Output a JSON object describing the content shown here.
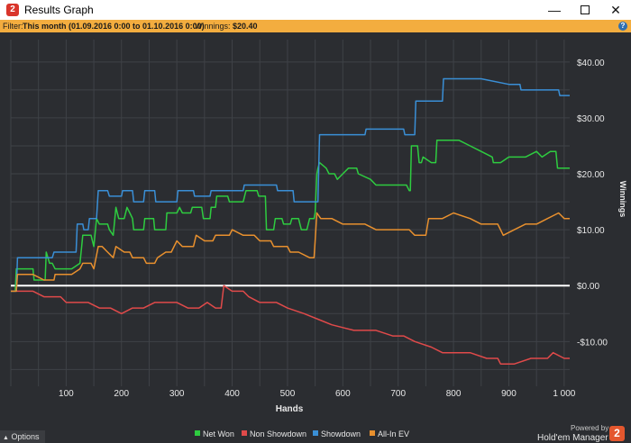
{
  "window": {
    "title": "Results Graph",
    "app_icon_glyph": "2",
    "controls": {
      "minimize": "—",
      "close": "✕"
    }
  },
  "filter_bar": {
    "label": "Filter:",
    "value": "This month (01.09.2016 0:00 to 01.10.2016 0:00)",
    "winnings_label": "Winnings:",
    "winnings_value": "$20.40",
    "help_glyph": "?"
  },
  "footer": {
    "options_label": "Options",
    "options_icon": "triangle-up",
    "powered_by": "Powered by",
    "brand": "Hold'em Manager",
    "brand_logo_glyph": "2"
  },
  "colors": {
    "background": "#2b2d31",
    "grid": "#3f4247",
    "axis_text": "#e8e8e8",
    "filter_bar": "#f3ad3f",
    "net_won": "#2ecc40",
    "non_showdown": "#e04a4a",
    "showdown": "#3a8fd6",
    "all_in_ev": "#e8902e",
    "zero_line": "#ffffff"
  },
  "chart_data": {
    "type": "line",
    "xlabel": "Hands",
    "ylabel": "Winnings",
    "xlim": [
      0,
      1010
    ],
    "ylim": [
      -18,
      44
    ],
    "x_ticks": [
      100,
      200,
      300,
      400,
      500,
      600,
      700,
      800,
      900,
      1000
    ],
    "x_tick_labels": [
      "100",
      "200",
      "300",
      "400",
      "500",
      "600",
      "700",
      "800",
      "900",
      "1 000"
    ],
    "y_ticks": [
      40,
      30,
      20,
      10,
      0,
      -10
    ],
    "y_tick_labels": [
      "$40.00",
      "$30.00",
      "$20.00",
      "$10.00",
      "$0.00",
      "-$10.00"
    ],
    "grid": true,
    "legend_position": "bottom-center",
    "series": [
      {
        "name": "Net Won",
        "color": "#2ecc40",
        "points": [
          [
            0,
            -1
          ],
          [
            8,
            -1
          ],
          [
            10,
            3
          ],
          [
            40,
            3
          ],
          [
            42,
            1
          ],
          [
            62,
            1
          ],
          [
            64,
            6
          ],
          [
            70,
            4
          ],
          [
            75,
            4
          ],
          [
            80,
            3
          ],
          [
            110,
            3
          ],
          [
            125,
            4
          ],
          [
            128,
            7
          ],
          [
            130,
            9
          ],
          [
            145,
            9
          ],
          [
            150,
            7
          ],
          [
            155,
            12
          ],
          [
            160,
            11
          ],
          [
            175,
            11
          ],
          [
            178,
            10
          ],
          [
            185,
            9
          ],
          [
            190,
            14
          ],
          [
            195,
            12
          ],
          [
            205,
            12
          ],
          [
            210,
            14
          ],
          [
            215,
            13
          ],
          [
            220,
            12
          ],
          [
            222,
            10
          ],
          [
            240,
            10
          ],
          [
            242,
            12
          ],
          [
            258,
            12
          ],
          [
            260,
            10
          ],
          [
            280,
            10
          ],
          [
            282,
            13
          ],
          [
            300,
            13
          ],
          [
            305,
            14
          ],
          [
            310,
            13
          ],
          [
            325,
            13
          ],
          [
            328,
            14
          ],
          [
            345,
            14
          ],
          [
            348,
            12
          ],
          [
            360,
            12
          ],
          [
            362,
            14
          ],
          [
            370,
            14
          ],
          [
            372,
            16
          ],
          [
            392,
            16
          ],
          [
            395,
            15
          ],
          [
            420,
            15
          ],
          [
            425,
            17
          ],
          [
            445,
            17
          ],
          [
            448,
            16
          ],
          [
            460,
            16
          ],
          [
            462,
            10
          ],
          [
            475,
            10
          ],
          [
            478,
            12
          ],
          [
            490,
            12
          ],
          [
            493,
            11
          ],
          [
            505,
            11
          ],
          [
            508,
            12
          ],
          [
            520,
            12
          ],
          [
            525,
            10
          ],
          [
            535,
            10
          ],
          [
            540,
            12
          ],
          [
            548,
            12
          ],
          [
            550,
            13
          ],
          [
            553,
            20
          ],
          [
            555,
            21
          ],
          [
            558,
            22
          ],
          [
            570,
            21
          ],
          [
            575,
            20
          ],
          [
            585,
            20
          ],
          [
            590,
            19
          ],
          [
            600,
            20
          ],
          [
            610,
            21
          ],
          [
            625,
            21
          ],
          [
            628,
            20
          ],
          [
            650,
            19
          ],
          [
            660,
            18
          ],
          [
            680,
            18
          ],
          [
            700,
            18
          ],
          [
            715,
            18
          ],
          [
            720,
            17
          ],
          [
            722,
            17
          ],
          [
            724,
            25
          ],
          [
            735,
            25
          ],
          [
            738,
            22
          ],
          [
            742,
            22
          ],
          [
            745,
            23
          ],
          [
            760,
            22
          ],
          [
            768,
            22
          ],
          [
            770,
            26
          ],
          [
            790,
            26
          ],
          [
            810,
            26
          ],
          [
            830,
            25
          ],
          [
            850,
            24
          ],
          [
            870,
            23
          ],
          [
            872,
            22
          ],
          [
            885,
            22
          ],
          [
            900,
            23
          ],
          [
            915,
            23
          ],
          [
            930,
            23
          ],
          [
            950,
            24
          ],
          [
            960,
            23
          ],
          [
            975,
            24
          ],
          [
            985,
            24
          ],
          [
            988,
            21
          ],
          [
            1000,
            21
          ],
          [
            1010,
            21
          ]
        ]
      },
      {
        "name": "Non Showdown",
        "color": "#e04a4a",
        "points": [
          [
            0,
            -1
          ],
          [
            10,
            -1
          ],
          [
            20,
            -1
          ],
          [
            40,
            -1
          ],
          [
            60,
            -2
          ],
          [
            90,
            -2
          ],
          [
            100,
            -3
          ],
          [
            140,
            -3
          ],
          [
            160,
            -4
          ],
          [
            180,
            -4
          ],
          [
            200,
            -5
          ],
          [
            220,
            -4
          ],
          [
            240,
            -4
          ],
          [
            260,
            -3
          ],
          [
            300,
            -3
          ],
          [
            320,
            -4
          ],
          [
            340,
            -4
          ],
          [
            355,
            -3
          ],
          [
            370,
            -4
          ],
          [
            380,
            -4
          ],
          [
            385,
            0
          ],
          [
            400,
            -1
          ],
          [
            420,
            -1
          ],
          [
            430,
            -2
          ],
          [
            450,
            -3
          ],
          [
            470,
            -3
          ],
          [
            480,
            -3
          ],
          [
            500,
            -4
          ],
          [
            530,
            -5
          ],
          [
            555,
            -6
          ],
          [
            580,
            -7
          ],
          [
            620,
            -8
          ],
          [
            660,
            -8
          ],
          [
            690,
            -9
          ],
          [
            710,
            -9
          ],
          [
            730,
            -10
          ],
          [
            760,
            -11
          ],
          [
            780,
            -12
          ],
          [
            800,
            -12
          ],
          [
            830,
            -12
          ],
          [
            860,
            -13
          ],
          [
            880,
            -13
          ],
          [
            885,
            -14
          ],
          [
            910,
            -14
          ],
          [
            940,
            -13
          ],
          [
            970,
            -13
          ],
          [
            980,
            -12
          ],
          [
            1000,
            -13
          ],
          [
            1010,
            -13
          ]
        ]
      },
      {
        "name": "Showdown",
        "color": "#3a8fd6",
        "points": [
          [
            0,
            -1
          ],
          [
            10,
            -1
          ],
          [
            12,
            5
          ],
          [
            75,
            5
          ],
          [
            78,
            6
          ],
          [
            118,
            6
          ],
          [
            120,
            11
          ],
          [
            130,
            11
          ],
          [
            132,
            10
          ],
          [
            140,
            10
          ],
          [
            142,
            12
          ],
          [
            155,
            12
          ],
          [
            158,
            17
          ],
          [
            160,
            17
          ],
          [
            175,
            17
          ],
          [
            178,
            16
          ],
          [
            200,
            16
          ],
          [
            202,
            17
          ],
          [
            220,
            17
          ],
          [
            222,
            15
          ],
          [
            240,
            15
          ],
          [
            242,
            17
          ],
          [
            260,
            17
          ],
          [
            262,
            15
          ],
          [
            300,
            15
          ],
          [
            302,
            17
          ],
          [
            330,
            17
          ],
          [
            332,
            16
          ],
          [
            360,
            16
          ],
          [
            362,
            17
          ],
          [
            420,
            17
          ],
          [
            422,
            18
          ],
          [
            480,
            18
          ],
          [
            482,
            17
          ],
          [
            510,
            17
          ],
          [
            512,
            15
          ],
          [
            540,
            15
          ],
          [
            542,
            15
          ],
          [
            555,
            15
          ],
          [
            558,
            27
          ],
          [
            640,
            27
          ],
          [
            642,
            28
          ],
          [
            710,
            28
          ],
          [
            712,
            27
          ],
          [
            730,
            27
          ],
          [
            732,
            33
          ],
          [
            780,
            33
          ],
          [
            782,
            37
          ],
          [
            850,
            37
          ],
          [
            900,
            36
          ],
          [
            920,
            36
          ],
          [
            922,
            35
          ],
          [
            960,
            35
          ],
          [
            990,
            35
          ],
          [
            992,
            34
          ],
          [
            1000,
            34
          ],
          [
            1010,
            34
          ]
        ]
      },
      {
        "name": "All-In EV",
        "color": "#e8902e",
        "points": [
          [
            0,
            -1
          ],
          [
            10,
            -1
          ],
          [
            12,
            2
          ],
          [
            40,
            2
          ],
          [
            60,
            1
          ],
          [
            78,
            1
          ],
          [
            80,
            2
          ],
          [
            110,
            2
          ],
          [
            125,
            3
          ],
          [
            130,
            4
          ],
          [
            145,
            4
          ],
          [
            150,
            3
          ],
          [
            158,
            7
          ],
          [
            165,
            7
          ],
          [
            175,
            6
          ],
          [
            185,
            5
          ],
          [
            190,
            7
          ],
          [
            205,
            6
          ],
          [
            215,
            6
          ],
          [
            220,
            5
          ],
          [
            240,
            5
          ],
          [
            245,
            4
          ],
          [
            260,
            4
          ],
          [
            265,
            5
          ],
          [
            280,
            6
          ],
          [
            290,
            6
          ],
          [
            300,
            8
          ],
          [
            310,
            7
          ],
          [
            330,
            7
          ],
          [
            335,
            9
          ],
          [
            350,
            8
          ],
          [
            365,
            8
          ],
          [
            370,
            9
          ],
          [
            395,
            9
          ],
          [
            400,
            10
          ],
          [
            420,
            9
          ],
          [
            440,
            9
          ],
          [
            450,
            8
          ],
          [
            470,
            8
          ],
          [
            475,
            7
          ],
          [
            500,
            7
          ],
          [
            505,
            6
          ],
          [
            520,
            6
          ],
          [
            540,
            5
          ],
          [
            548,
            5
          ],
          [
            550,
            8
          ],
          [
            553,
            13
          ],
          [
            560,
            12
          ],
          [
            580,
            12
          ],
          [
            600,
            11
          ],
          [
            640,
            11
          ],
          [
            660,
            10
          ],
          [
            700,
            10
          ],
          [
            720,
            10
          ],
          [
            730,
            9
          ],
          [
            750,
            9
          ],
          [
            755,
            12
          ],
          [
            780,
            12
          ],
          [
            800,
            13
          ],
          [
            830,
            12
          ],
          [
            850,
            11
          ],
          [
            880,
            11
          ],
          [
            890,
            9
          ],
          [
            910,
            10
          ],
          [
            930,
            11
          ],
          [
            950,
            11
          ],
          [
            970,
            12
          ],
          [
            990,
            13
          ],
          [
            1000,
            12
          ],
          [
            1010,
            12
          ]
        ]
      }
    ]
  }
}
